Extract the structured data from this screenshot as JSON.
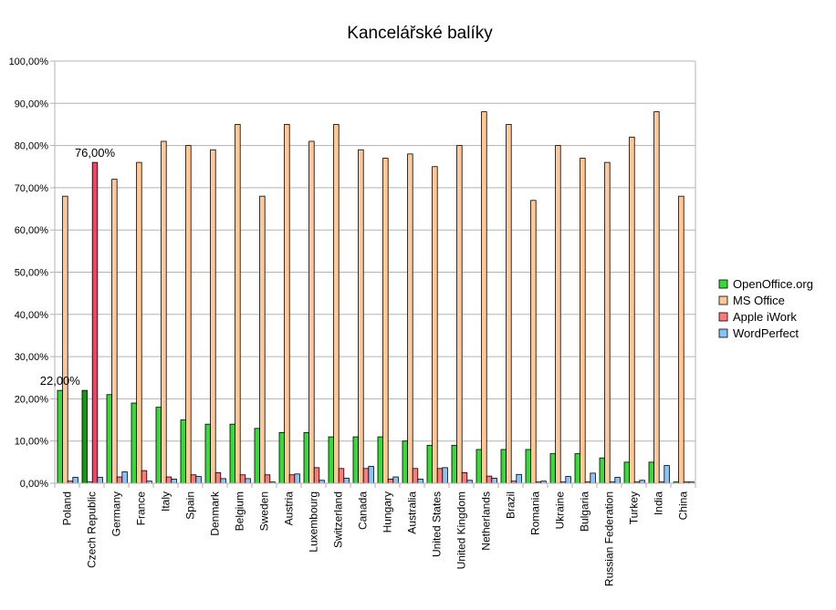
{
  "chart_data": {
    "type": "bar",
    "title": "Kancelářské balíky",
    "xlabel": "",
    "ylabel": "",
    "ylim": [
      0,
      100
    ],
    "y_ticks": [
      "0,00%",
      "10,00%",
      "20,00%",
      "30,00%",
      "40,00%",
      "50,00%",
      "60,00%",
      "70,00%",
      "80,00%",
      "90,00%",
      "100,00%"
    ],
    "grid": true,
    "legend_position": "right",
    "categories": [
      "Poland",
      "Czech Republic",
      "Germany",
      "France",
      "Italy",
      "Spain",
      "Denmark",
      "Belgium",
      "Sweden",
      "Austria",
      "Luxembourg",
      "Switzerland",
      "Canada",
      "Hungary",
      "Australia",
      "United States",
      "United Kingdom",
      "Netherlands",
      "Brazil",
      "Romania",
      "Ukraine",
      "Bulgaria",
      "Russian Federation",
      "Turkey",
      "India",
      "China"
    ],
    "series": [
      {
        "name": "OpenOffice.org",
        "color": "#33dd33",
        "values": [
          22,
          22,
          21,
          19,
          18,
          15,
          14,
          14,
          13,
          12,
          12,
          11,
          11,
          11,
          10,
          9,
          9,
          8,
          8,
          8,
          7,
          7,
          6,
          5,
          5,
          0.3
        ]
      },
      {
        "name": "MS Office",
        "color": "#ffc896",
        "values": [
          68,
          0.3,
          72,
          76,
          81,
          80,
          79,
          85,
          68,
          85,
          81,
          85,
          79,
          77,
          78,
          75,
          80,
          88,
          85,
          67,
          80,
          77,
          76,
          82,
          88,
          68
        ]
      },
      {
        "name": "Apple iWork",
        "color": "#ff7b7b",
        "values": [
          0.5,
          76,
          1.5,
          3,
          1.5,
          2,
          2.5,
          2,
          2,
          2,
          3.7,
          3.5,
          3.5,
          1,
          3.5,
          3.5,
          2.5,
          1.7,
          0.5,
          0.3,
          0.3,
          0.3,
          0.3,
          0.3,
          0.3,
          0.3
        ]
      },
      {
        "name": "WordPerfect",
        "color": "#8ac4f4",
        "values": [
          1.4,
          1.4,
          2.7,
          0.5,
          1,
          1.6,
          1.1,
          1.1,
          0.3,
          2.2,
          0.7,
          1.2,
          4,
          1.5,
          1,
          3.7,
          0.7,
          1.2,
          2.1,
          0.5,
          1.6,
          2.4,
          1.4,
          0.7,
          4.2,
          0.3
        ]
      }
    ],
    "highlight": {
      "category": "Czech Republic",
      "colors": {
        "OpenOffice.org": "#119911",
        "Apple iWork": "#ee4466"
      }
    },
    "data_labels": [
      {
        "text": "22,00%",
        "category": "Poland",
        "series": "OpenOffice.org",
        "value": 22
      },
      {
        "text": "76,00%",
        "category": "Czech Republic",
        "series": "Apple iWork",
        "value": 76
      }
    ]
  }
}
